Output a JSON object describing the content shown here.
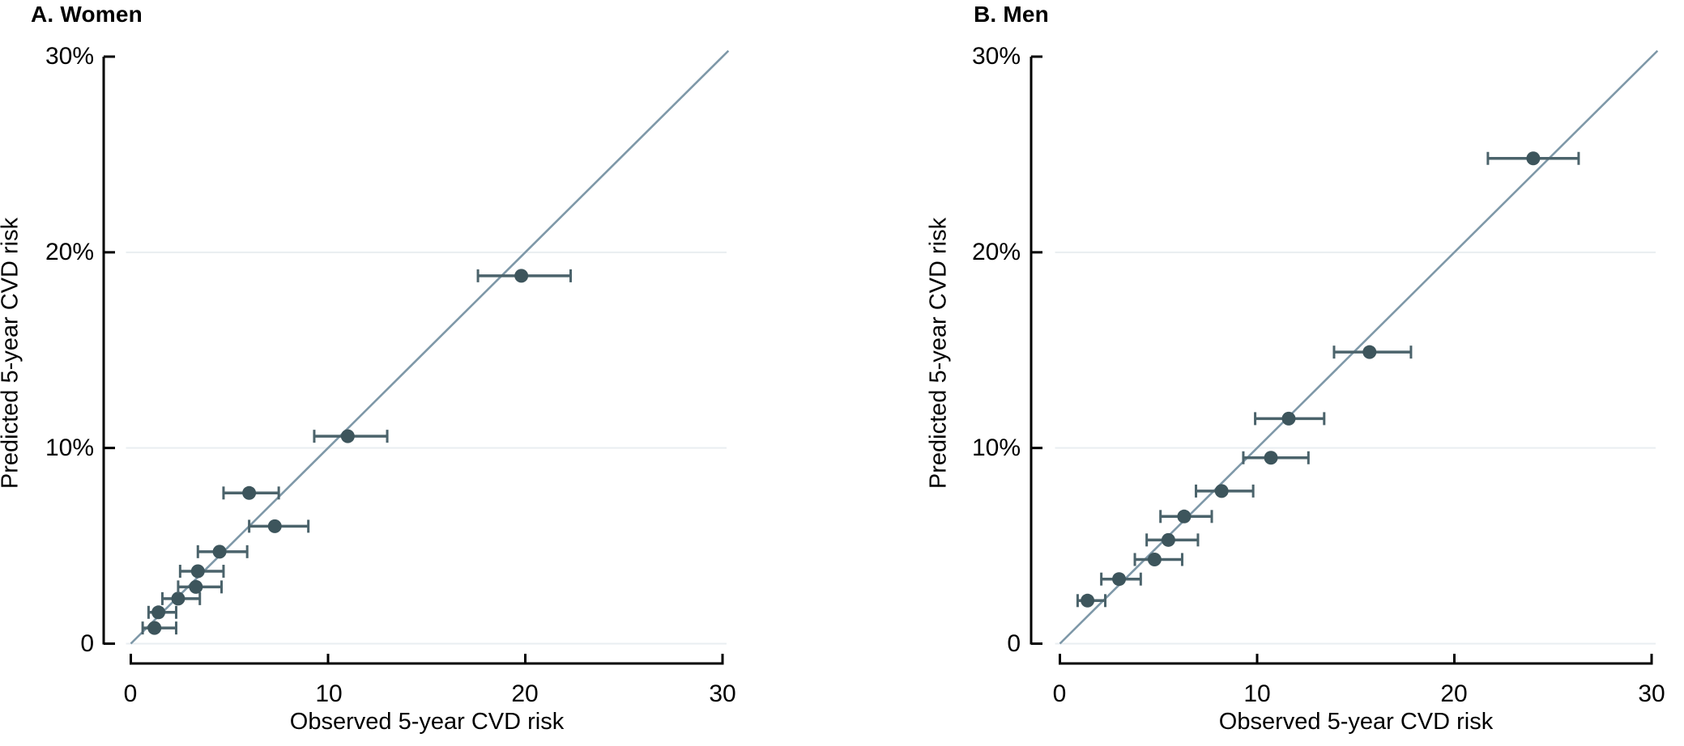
{
  "colors": {
    "marker": "#3d555c",
    "error_bar": "#4b636b",
    "reference_line": "#7e98a8",
    "gridline": "#e9eef1",
    "axis": "#000000",
    "background": "#ffffff"
  },
  "chart_data": [
    {
      "type": "scatter",
      "panel": "A",
      "title": "A. Women",
      "xlabel": "Observed 5-year CVD risk",
      "ylabel": "Predicted 5-year CVD risk",
      "xlim": [
        0,
        30
      ],
      "ylim": [
        0,
        30
      ],
      "x_ticks": [
        0,
        10,
        20,
        30
      ],
      "y_ticks": [
        0,
        10,
        20,
        30
      ],
      "x_tick_labels": [
        "0",
        "10",
        "20",
        "30"
      ],
      "y_tick_labels": [
        "0",
        "10%",
        "20%",
        "30%"
      ],
      "gridlines_y": [
        0,
        10,
        20
      ],
      "reference_line": "identity (y = x)",
      "error_bars": "horizontal 95% CI of observed risk",
      "points": [
        {
          "observed": 1.2,
          "observed_ci": [
            0.6,
            2.3
          ],
          "predicted": 0.8
        },
        {
          "observed": 1.4,
          "observed_ci": [
            0.9,
            2.3
          ],
          "predicted": 1.6
        },
        {
          "observed": 2.4,
          "observed_ci": [
            1.6,
            3.5
          ],
          "predicted": 2.3
        },
        {
          "observed": 3.3,
          "observed_ci": [
            2.4,
            4.6
          ],
          "predicted": 2.9
        },
        {
          "observed": 3.4,
          "observed_ci": [
            2.5,
            4.7
          ],
          "predicted": 3.7
        },
        {
          "observed": 4.5,
          "observed_ci": [
            3.4,
            5.9
          ],
          "predicted": 4.7
        },
        {
          "observed": 6.0,
          "observed_ci": [
            4.7,
            7.5
          ],
          "predicted": 7.7
        },
        {
          "observed": 7.3,
          "observed_ci": [
            6.0,
            9.0
          ],
          "predicted": 6.0
        },
        {
          "observed": 11.0,
          "observed_ci": [
            9.3,
            13.0
          ],
          "predicted": 10.6
        },
        {
          "observed": 19.8,
          "observed_ci": [
            17.6,
            22.3
          ],
          "predicted": 18.8
        }
      ]
    },
    {
      "type": "scatter",
      "panel": "B",
      "title": "B. Men",
      "xlabel": "Observed 5-year CVD risk",
      "ylabel": "Predicted 5-year CVD risk",
      "xlim": [
        0,
        30
      ],
      "ylim": [
        0,
        30
      ],
      "x_ticks": [
        0,
        10,
        20,
        30
      ],
      "y_ticks": [
        0,
        10,
        20,
        30
      ],
      "x_tick_labels": [
        "0",
        "10",
        "20",
        "30"
      ],
      "y_tick_labels": [
        "0",
        "10%",
        "20%",
        "30%"
      ],
      "gridlines_y": [
        0,
        10,
        20
      ],
      "reference_line": "identity (y = x)",
      "error_bars": "horizontal 95% CI of observed risk",
      "points": [
        {
          "observed": 1.4,
          "observed_ci": [
            0.9,
            2.3
          ],
          "predicted": 2.2
        },
        {
          "observed": 3.0,
          "observed_ci": [
            2.1,
            4.1
          ],
          "predicted": 3.3
        },
        {
          "observed": 4.8,
          "observed_ci": [
            3.8,
            6.2
          ],
          "predicted": 4.3
        },
        {
          "observed": 5.5,
          "observed_ci": [
            4.4,
            7.0
          ],
          "predicted": 5.3
        },
        {
          "observed": 6.3,
          "observed_ci": [
            5.1,
            7.7
          ],
          "predicted": 6.5
        },
        {
          "observed": 8.2,
          "observed_ci": [
            6.9,
            9.8
          ],
          "predicted": 7.8
        },
        {
          "observed": 10.7,
          "observed_ci": [
            9.3,
            12.6
          ],
          "predicted": 9.5
        },
        {
          "observed": 11.6,
          "observed_ci": [
            9.9,
            13.4
          ],
          "predicted": 11.5
        },
        {
          "observed": 15.7,
          "observed_ci": [
            13.9,
            17.8
          ],
          "predicted": 14.9
        },
        {
          "observed": 24.0,
          "observed_ci": [
            21.7,
            26.3
          ],
          "predicted": 24.8
        }
      ]
    }
  ]
}
